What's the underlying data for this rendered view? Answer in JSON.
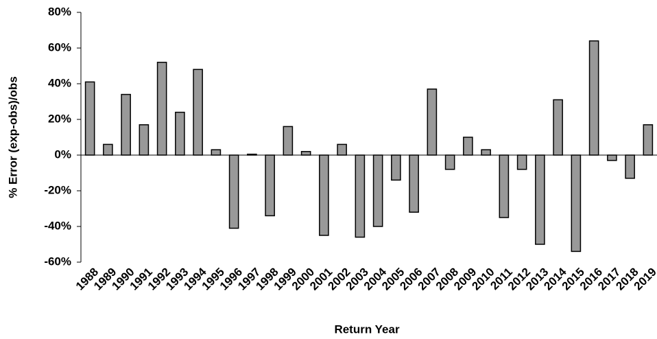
{
  "chart_data": {
    "type": "bar",
    "x_label": "Return Year",
    "y_label": "% Error (exp-obs)/obs",
    "categories": [
      "1988",
      "1989",
      "1990",
      "1991",
      "1992",
      "1993",
      "1994",
      "1995",
      "1996",
      "1997",
      "1998",
      "1999",
      "2000",
      "2001",
      "2002",
      "2003",
      "2004",
      "2005",
      "2006",
      "2007",
      "2008",
      "2009",
      "2010",
      "2011",
      "2012",
      "2013",
      "2014",
      "2015",
      "2016",
      "2017",
      "2018",
      "2019"
    ],
    "values": [
      41,
      6,
      34,
      17,
      52,
      24,
      48,
      3,
      -41,
      0.5,
      -34,
      16,
      2,
      -45,
      6,
      -46,
      -40,
      -14,
      -32,
      37,
      -8,
      10,
      3,
      -35,
      -8,
      -50,
      31,
      -54,
      64,
      -3,
      -13,
      17
    ],
    "color": "#999999",
    "ylim": [
      -60,
      80
    ],
    "yticks": [
      {
        "value": -60,
        "label": "-60%"
      },
      {
        "value": -40,
        "label": "-40%"
      },
      {
        "value": -20,
        "label": "-20%"
      },
      {
        "value": 0,
        "label": "0%"
      },
      {
        "value": 20,
        "label": "20%"
      },
      {
        "value": 40,
        "label": "40%"
      },
      {
        "value": 60,
        "label": "60%"
      },
      {
        "value": 80,
        "label": "80%"
      }
    ],
    "grid": false
  }
}
